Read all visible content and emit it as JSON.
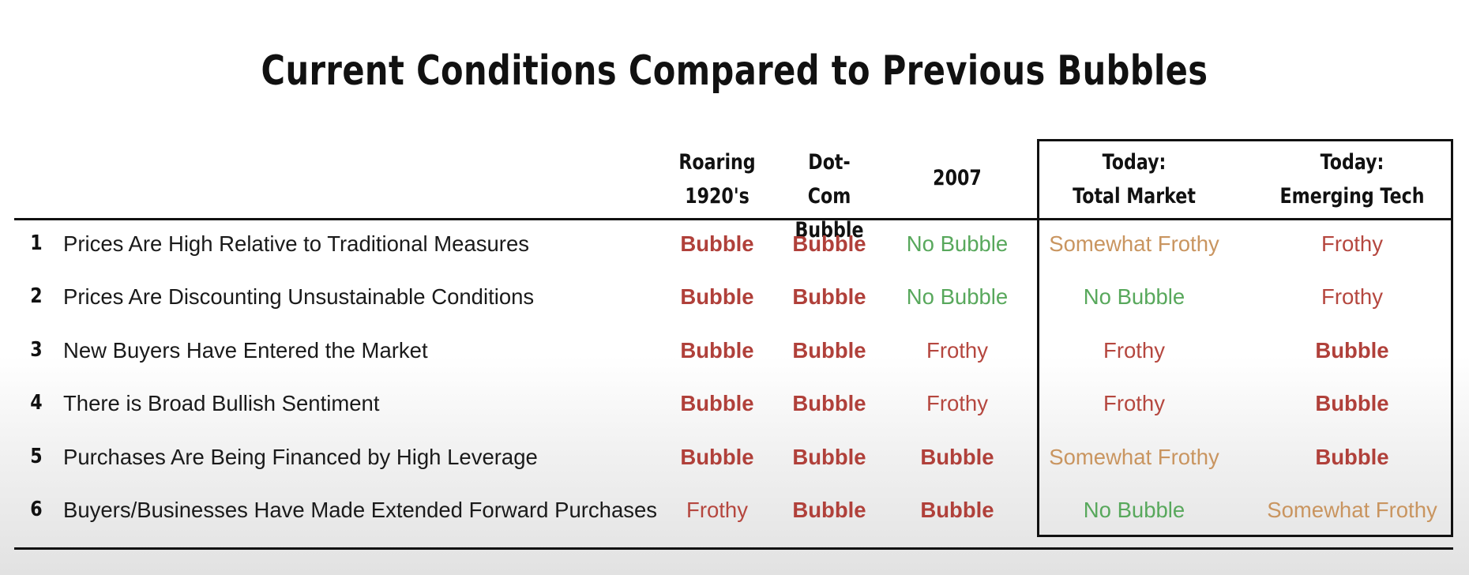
{
  "chart_data": {
    "type": "table",
    "title": "Current Conditions Compared to Previous Bubbles",
    "columns": [
      {
        "key": "roaring",
        "lines": [
          "Roaring",
          "1920's"
        ]
      },
      {
        "key": "dotcom",
        "lines": [
          "Dot-Com",
          "Bubble"
        ]
      },
      {
        "key": "y2007",
        "lines": [
          "2007"
        ]
      },
      {
        "key": "today_total",
        "lines": [
          "Today:",
          "Total Market"
        ]
      },
      {
        "key": "today_emerging",
        "lines": [
          "Today:",
          "Emerging Tech"
        ]
      }
    ],
    "rows": [
      {
        "num": "1",
        "label": "Prices Are High Relative to Traditional Measures",
        "values": [
          "Bubble",
          "Bubble",
          "No Bubble",
          "Somewhat Frothy",
          "Frothy"
        ]
      },
      {
        "num": "2",
        "label": "Prices Are Discounting Unsustainable Conditions",
        "values": [
          "Bubble",
          "Bubble",
          "No Bubble",
          "No Bubble",
          "Frothy"
        ]
      },
      {
        "num": "3",
        "label": "New Buyers Have Entered the Market",
        "values": [
          "Bubble",
          "Bubble",
          "Frothy",
          "Frothy",
          "Bubble"
        ]
      },
      {
        "num": "4",
        "label": "There is Broad Bullish Sentiment",
        "values": [
          "Bubble",
          "Bubble",
          "Frothy",
          "Frothy",
          "Bubble"
        ]
      },
      {
        "num": "5",
        "label": "Purchases Are Being Financed by High Leverage",
        "values": [
          "Bubble",
          "Bubble",
          "Bubble",
          "Somewhat Frothy",
          "Bubble"
        ]
      },
      {
        "num": "6",
        "label": "Buyers/Businesses Have Made Extended Forward Purchases",
        "values": [
          "Frothy",
          "Bubble",
          "Bubble",
          "No Bubble",
          "Somewhat Frothy"
        ]
      }
    ],
    "value_colors": {
      "Bubble": "#b0403a",
      "Frothy": "#b5473f",
      "No Bubble": "#58a85c",
      "Somewhat Frothy": "#c99560"
    },
    "highlighted_columns": [
      "today_total",
      "today_emerging"
    ]
  }
}
